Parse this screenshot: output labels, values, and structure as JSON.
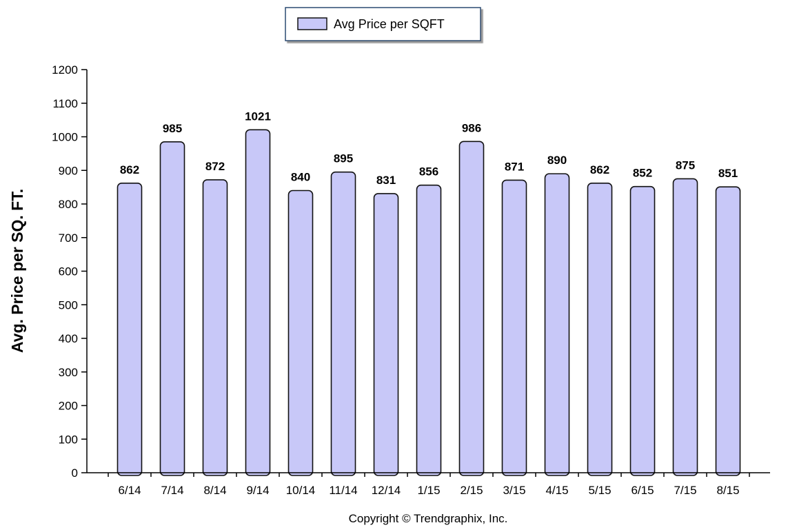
{
  "chart_data": {
    "type": "bar",
    "categories": [
      "6/14",
      "7/14",
      "8/14",
      "9/14",
      "10/14",
      "11/14",
      "12/14",
      "1/15",
      "2/15",
      "3/15",
      "4/15",
      "5/15",
      "6/15",
      "7/15",
      "8/15"
    ],
    "series": [
      {
        "name": "Avg Price per SQFT",
        "values": [
          862,
          985,
          872,
          1021,
          840,
          895,
          831,
          856,
          986,
          871,
          890,
          862,
          852,
          875,
          851
        ]
      }
    ],
    "title": "",
    "xlabel": "",
    "ylabel": "Avg. Price per SQ. FT.",
    "ylim": [
      0,
      1200
    ],
    "yticks": [
      0,
      100,
      200,
      300,
      400,
      500,
      600,
      700,
      800,
      900,
      1000,
      1100,
      1200
    ],
    "grid": false,
    "legend_position": "top-center",
    "data_labels": true,
    "bar_color": "#c8c8f8",
    "bar_edge_color": "#111111",
    "footer": "Copyright © Trendgraphix, Inc."
  }
}
